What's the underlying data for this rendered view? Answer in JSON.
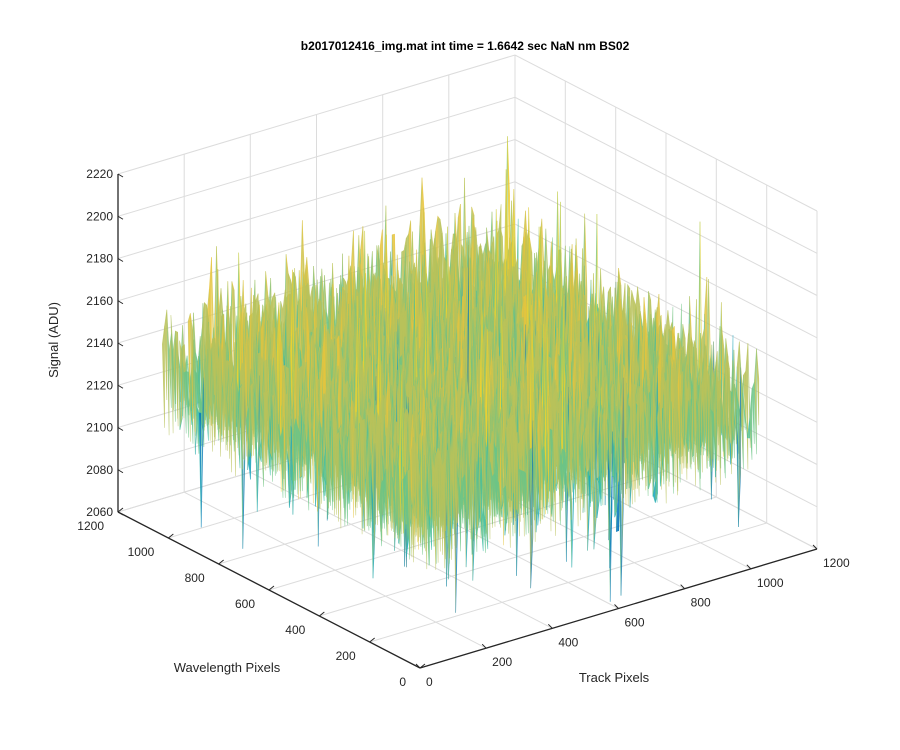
{
  "chart_data": {
    "type": "surface",
    "title": "b2017012416_img.mat int time = 1.6642 sec  NaN nm BS02",
    "xlabel": "Track Pixels",
    "ylabel": "Wavelength Pixels",
    "zlabel": "Signal (ADU)",
    "xlim": [
      0,
      1200
    ],
    "ylim": [
      0,
      1200
    ],
    "zlim": [
      2060,
      2220
    ],
    "xticks": [
      "0",
      "200",
      "400",
      "600",
      "800",
      "1000",
      "1200"
    ],
    "yticks": [
      "0",
      "200",
      "400",
      "600",
      "800",
      "1000",
      "1200"
    ],
    "zticks": [
      "2060",
      "2080",
      "2100",
      "2120",
      "2140",
      "2160",
      "2180",
      "2200",
      "2220"
    ],
    "grid": true,
    "surface_extent": {
      "x": [
        0,
        1024
      ],
      "y": [
        0,
        1024
      ]
    },
    "surface_mean": 2148,
    "surface_min": 2060,
    "surface_max": 2215,
    "colormap": [
      "#0072bd",
      "#12a2c2",
      "#2dbbac",
      "#6cc487",
      "#b9c25a",
      "#e8c43c",
      "#f2d32a"
    ]
  }
}
